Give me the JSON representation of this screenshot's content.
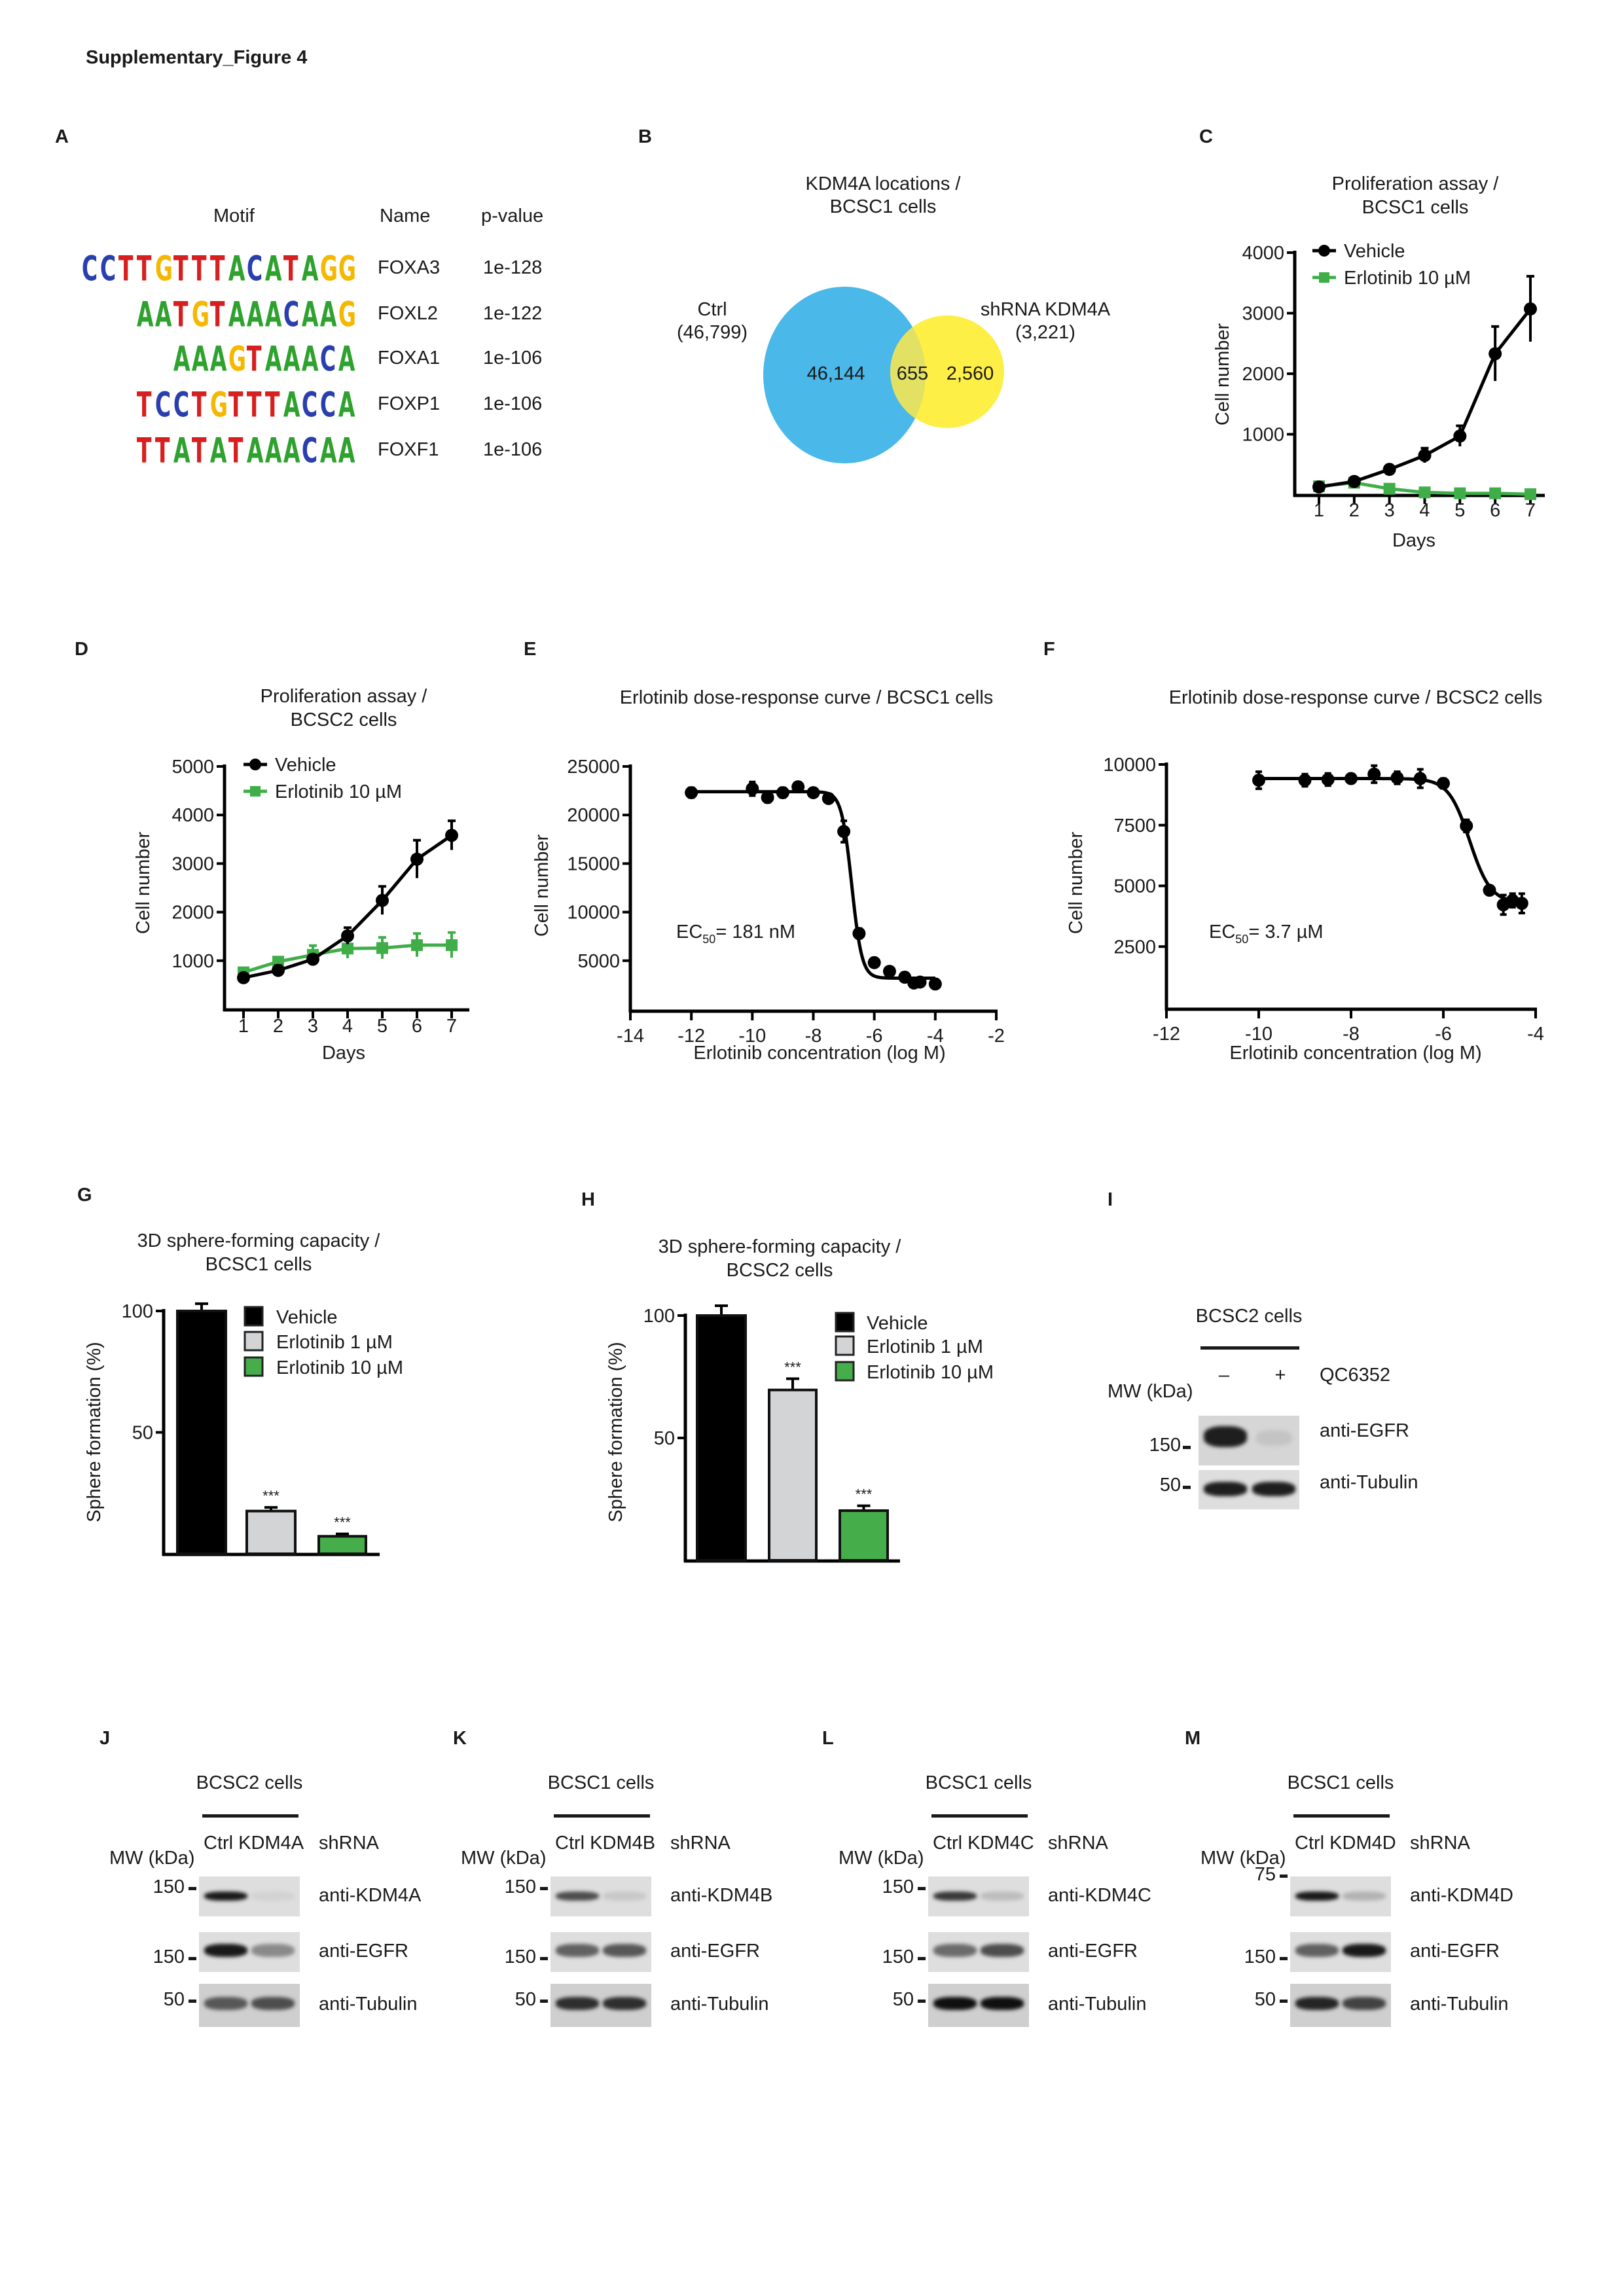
{
  "figure_title": "Supplementary_Figure 4",
  "panel_letters": [
    "A",
    "B",
    "C",
    "D",
    "E",
    "F",
    "G",
    "H",
    "I",
    "J",
    "K",
    "L",
    "M"
  ],
  "panel_a": {
    "headers": {
      "motif": "Motif",
      "name": "Name",
      "pvalue": "p-value"
    },
    "letter_colors": {
      "A": "#2ea12e",
      "C": "#2a3fae",
      "G": "#f5b800",
      "T": "#d81f1f"
    },
    "rows": [
      {
        "logo": "CCTTGTTTACATAGG",
        "name": "FOXA3",
        "pvalue": "1e-128"
      },
      {
        "logo": "AATGTAAACAAG",
        "name": "FOXL2",
        "pvalue": "1e-122"
      },
      {
        "logo": "AAAGTAAACA",
        "name": "FOXA1",
        "pvalue": "1e-106"
      },
      {
        "logo": "TCCTGTTTACCA",
        "name": "FOXP1",
        "pvalue": "1e-106"
      },
      {
        "logo": "TTATATAAACAA",
        "name": "FOXF1",
        "pvalue": "1e-106"
      }
    ]
  },
  "panel_b": {
    "title": [
      "KDM4A locations /",
      "BCSC1 cells"
    ],
    "set_left": {
      "label": "Ctrl",
      "total": "(46,799)",
      "color": "#4ab8e8"
    },
    "set_right": {
      "label": "shRNA KDM4A",
      "total": "(3,221)",
      "color": "#fdef45"
    },
    "overlap_color": "#e3e164",
    "left_only": "46,144",
    "overlap": "655",
    "right_only": "2,560"
  },
  "chart_data": [
    {
      "id": "C",
      "type": "line",
      "title": [
        "Proliferation assay /",
        "BCSC1 cells"
      ],
      "xlabel": "Days",
      "ylabel": "Cell number",
      "x": [
        1,
        2,
        3,
        4,
        5,
        6,
        7
      ],
      "xticks": [
        "1",
        "2",
        "3",
        "4",
        "5",
        "6",
        "7"
      ],
      "ylim": [
        0,
        4000
      ],
      "yticks": [
        "1000",
        "2000",
        "3000",
        "4000"
      ],
      "legend_position": "top-left",
      "series": [
        {
          "name": "Vehicle",
          "color": "#000000",
          "marker": "circle",
          "values": [
            130,
            220,
            420,
            650,
            970,
            2330,
            3070
          ],
          "errors": [
            20,
            40,
            40,
            120,
            170,
            450,
            540
          ]
        },
        {
          "name": "Erlotinib 10 µM",
          "color": "#3fae49",
          "marker": "square",
          "values": [
            140,
            200,
            100,
            40,
            25,
            25,
            10
          ],
          "errors": [
            15,
            20,
            15,
            10,
            10,
            10,
            10
          ]
        }
      ]
    },
    {
      "id": "D",
      "type": "line",
      "title": [
        "Proliferation assay /",
        "BCSC2 cells"
      ],
      "xlabel": "Days",
      "ylabel": "Cell number",
      "x": [
        1,
        2,
        3,
        4,
        5,
        6,
        7
      ],
      "xticks": [
        "1",
        "2",
        "3",
        "4",
        "5",
        "6",
        "7"
      ],
      "ylim": [
        0,
        5000
      ],
      "yticks": [
        "1000",
        "2000",
        "3000",
        "4000",
        "5000"
      ],
      "legend_position": "top-left",
      "series": [
        {
          "name": "Vehicle",
          "color": "#000000",
          "marker": "circle",
          "values": [
            650,
            800,
            1030,
            1510,
            2240,
            3090,
            3580
          ],
          "errors": [
            30,
            100,
            90,
            170,
            290,
            390,
            300
          ]
        },
        {
          "name": "Erlotinib 10 µM",
          "color": "#3fae49",
          "marker": "square",
          "values": [
            760,
            980,
            1120,
            1250,
            1260,
            1320,
            1320
          ],
          "errors": [
            30,
            50,
            190,
            200,
            220,
            240,
            260
          ]
        }
      ]
    },
    {
      "id": "E",
      "type": "scatter",
      "title": "Erlotinib dose-response curve / BCSC1 cells",
      "xlabel": "Erlotinib concentration (log M)",
      "ylabel": "Cell number",
      "xlim": [
        -14,
        -2
      ],
      "xticks": [
        "-14",
        "-12",
        "-10",
        "-8",
        "-6",
        "-4",
        "-2"
      ],
      "ylim": [
        0,
        25000
      ],
      "yticks": [
        "5000",
        "10000",
        "15000",
        "20000",
        "25000"
      ],
      "annotation": {
        "prefix": "EC",
        "sub": "50",
        "text": "= 181 nM"
      },
      "x": [
        -12,
        -10,
        -9.5,
        -9,
        -8.5,
        -8,
        -7.5,
        -7,
        -6.5,
        -6,
        -5.5,
        -5,
        -4.7,
        -4.5,
        -4
      ],
      "values": [
        22300,
        22700,
        21800,
        22300,
        22900,
        22300,
        21700,
        18300,
        7800,
        4800,
        3900,
        3300,
        2700,
        2800,
        2600
      ],
      "errors": [
        500,
        700,
        500,
        500,
        300,
        300,
        400,
        1100,
        500,
        400,
        300,
        200,
        200,
        200,
        200
      ],
      "fit": {
        "top": 22400,
        "bottom": 3200,
        "log_ec50": -6.74,
        "hill": 2.6
      }
    },
    {
      "id": "F",
      "type": "scatter",
      "title": "Erlotinib dose-response curve / BCSC2 cells",
      "xlabel": "Erlotinib concentration (log M)",
      "ylabel": "Cell number",
      "xlim": [
        -12,
        -4
      ],
      "xticks": [
        "-12",
        "-10",
        "-8",
        "-6",
        "-4"
      ],
      "ylim": [
        0,
        10000
      ],
      "yticks": [
        "2500",
        "5000",
        "7500",
        "10000"
      ],
      "annotation": {
        "prefix": "EC",
        "sub": "50",
        "text": "= 3.7 µM"
      },
      "x": [
        -10,
        -9,
        -8.5,
        -8,
        -7.5,
        -7,
        -6.5,
        -6,
        -5.5,
        -5,
        -4.7,
        -4.5,
        -4.3
      ],
      "values": [
        9350,
        9350,
        9380,
        9420,
        9600,
        9450,
        9420,
        9220,
        7470,
        4820,
        4220,
        4400,
        4280
      ],
      "errors": [
        350,
        250,
        250,
        150,
        350,
        250,
        380,
        200,
        250,
        100,
        400,
        280,
        400
      ],
      "fit": {
        "top": 9420,
        "bottom": 4300,
        "log_ec50": -5.43,
        "hill": 1.9
      }
    },
    {
      "id": "G",
      "type": "bar",
      "title": [
        "3D sphere-forming capacity /",
        "BCSC1 cells"
      ],
      "ylabel": "Sphere formation (%)",
      "ylim": [
        0,
        100
      ],
      "yticks": [
        "50",
        "100"
      ],
      "legend_position": "top-right",
      "categories": [
        "Vehicle",
        "Erlotinib 1 µM",
        "Erlotinib 10 µM"
      ],
      "colors": [
        "#000000",
        "#d3d4d6",
        "#45ae4b"
      ],
      "values": [
        100,
        17.6,
        7.2
      ],
      "errors": [
        3,
        1.5,
        1
      ],
      "significance": [
        "",
        "***",
        "***"
      ]
    },
    {
      "id": "H",
      "type": "bar",
      "title": [
        "3D sphere-forming capacity /",
        "BCSC2 cells"
      ],
      "ylabel": "Sphere formation (%)",
      "ylim": [
        0,
        100
      ],
      "yticks": [
        "50",
        "100"
      ],
      "legend_position": "top-right",
      "categories": [
        "Vehicle",
        "Erlotinib 1 µM",
        "Erlotinib 10 µM"
      ],
      "colors": [
        "#000000",
        "#d3d4d6",
        "#45ae4b"
      ],
      "values": [
        100,
        69.6,
        20.3
      ],
      "errors": [
        4,
        4.6,
        2
      ],
      "significance": [
        "",
        "***",
        "***"
      ]
    }
  ],
  "panel_i": {
    "cells": "BCSC2 cells",
    "lanes": [
      "–",
      "+"
    ],
    "treatment": "QC6352",
    "mw_label": "MW (kDa)",
    "blots": [
      {
        "antibody": "anti-EGFR",
        "marker": "150",
        "bands": [
          0.95,
          0.12
        ]
      },
      {
        "antibody": "anti-Tubulin",
        "marker": "50",
        "bands": [
          0.95,
          0.95
        ]
      }
    ]
  },
  "blot_panels": [
    {
      "id": "J",
      "cells": "BCSC2 cells",
      "lanes": "Ctrl KDM4A",
      "lanes_suffix": "shRNA",
      "mw_label": "MW (kDa)",
      "blots": [
        {
          "antibody": "anti-KDM4A",
          "marker": "150",
          "bands": [
            0.95,
            0.05
          ]
        },
        {
          "antibody": "anti-EGFR",
          "marker": "150",
          "bands": [
            0.95,
            0.4
          ]
        },
        {
          "antibody": "anti-Tubulin",
          "marker": "50",
          "bands": [
            0.65,
            0.7
          ]
        }
      ]
    },
    {
      "id": "K",
      "cells": "BCSC1 cells",
      "lanes": "Ctrl KDM4B",
      "lanes_suffix": "shRNA",
      "mw_label": "MW (kDa)",
      "blots": [
        {
          "antibody": "anti-KDM4B",
          "marker": "150",
          "bands": [
            0.7,
            0.1
          ]
        },
        {
          "antibody": "anti-EGFR",
          "marker": "150",
          "bands": [
            0.6,
            0.65
          ]
        },
        {
          "antibody": "anti-Tubulin",
          "marker": "50",
          "bands": [
            0.85,
            0.85
          ]
        }
      ]
    },
    {
      "id": "L",
      "cells": "BCSC1 cells",
      "lanes": "Ctrl KDM4C",
      "lanes_suffix": "shRNA",
      "mw_label": "MW (kDa)",
      "blots": [
        {
          "antibody": "anti-KDM4C",
          "marker": "150",
          "bands": [
            0.8,
            0.15
          ]
        },
        {
          "antibody": "anti-EGFR",
          "marker": "150",
          "bands": [
            0.55,
            0.7
          ]
        },
        {
          "antibody": "anti-Tubulin",
          "marker": "50",
          "bands": [
            1.0,
            1.0
          ]
        }
      ]
    },
    {
      "id": "M",
      "cells": "BCSC1 cells",
      "lanes": "Ctrl KDM4D",
      "lanes_suffix": "shRNA",
      "mw_label": "MW (kDa)",
      "blots": [
        {
          "antibody": "anti-KDM4D",
          "marker": "75",
          "bands": [
            0.95,
            0.2
          ]
        },
        {
          "antibody": "anti-EGFR",
          "marker": "150",
          "bands": [
            0.6,
            0.95
          ]
        },
        {
          "antibody": "anti-Tubulin",
          "marker": "50",
          "bands": [
            0.9,
            0.75
          ]
        }
      ]
    }
  ]
}
